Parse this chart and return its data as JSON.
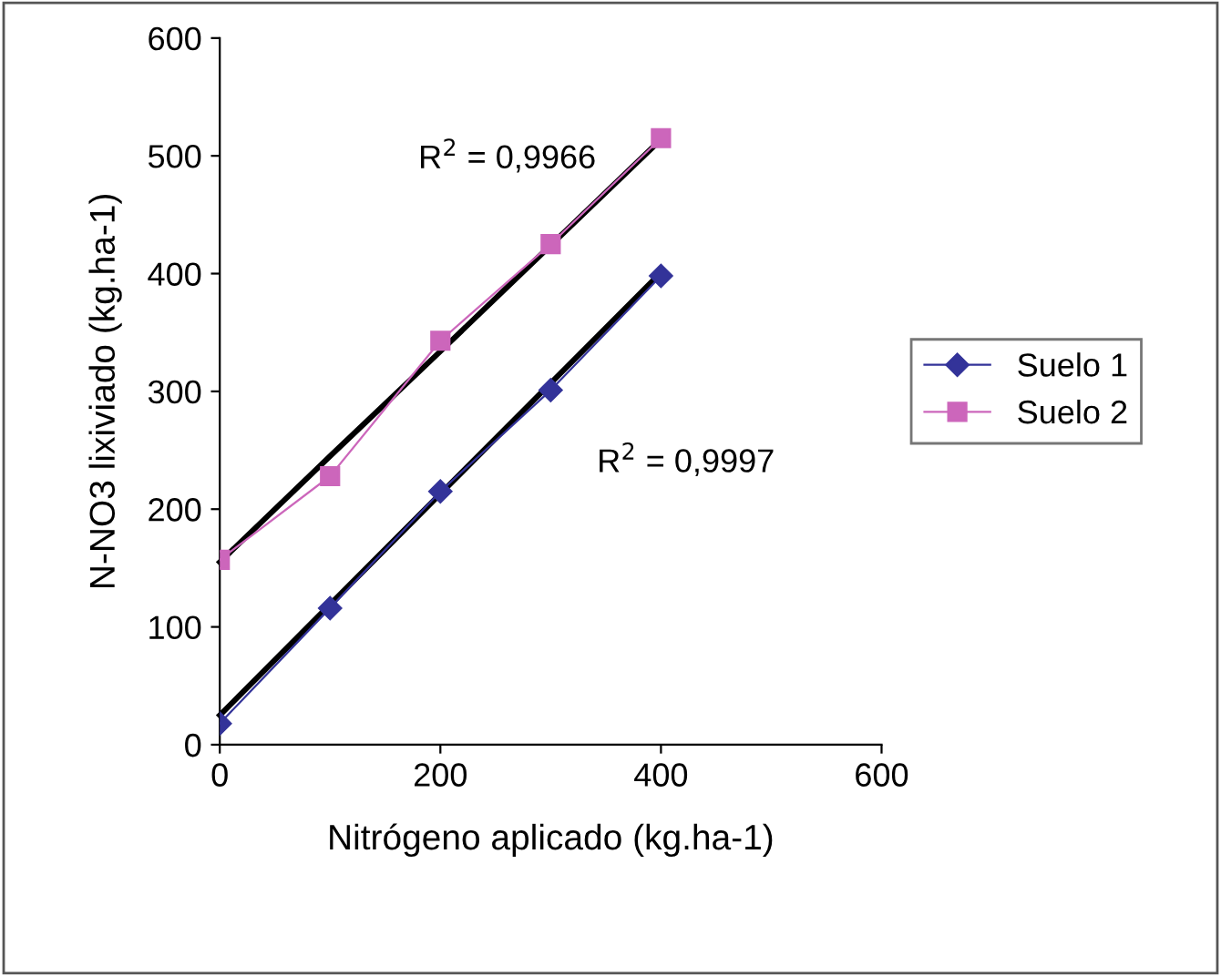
{
  "chart_data": {
    "type": "line",
    "xlabel": "Nitrógeno aplicado (kg.ha-1)",
    "ylabel": "N-NO3 lixiviado (kg.ha-1)",
    "x": [
      0,
      100,
      200,
      300,
      400
    ],
    "series": [
      {
        "name": "Suelo 1",
        "color": "#333399",
        "marker": "diamond",
        "values": [
          18,
          116,
          215,
          301,
          398
        ]
      },
      {
        "name": "Suelo 2",
        "color": "#cc66bb",
        "marker": "square",
        "values": [
          157,
          228,
          343,
          425,
          515
        ]
      },
      {
        "type": "line",
        "color": "#000000",
        "marker": "none",
        "values": [
          25,
          119,
          213,
          307,
          401
        ]
      },
      {
        "type": "line",
        "color": "#000000",
        "marker": "none",
        "values": [
          155,
          245,
          334,
          424,
          514
        ]
      }
    ],
    "annotations": [
      "R$^{2}$ = 0,9966",
      "R$^{2}$ = 0,9997"
    ],
    "xlim": [
      0,
      600
    ],
    "ylim": [
      0,
      600
    ],
    "xticks": [
      0,
      200,
      400,
      600
    ],
    "yticks": [
      0,
      100,
      200,
      300,
      400,
      500,
      600
    ],
    "grid": false,
    "legend": "right"
  }
}
